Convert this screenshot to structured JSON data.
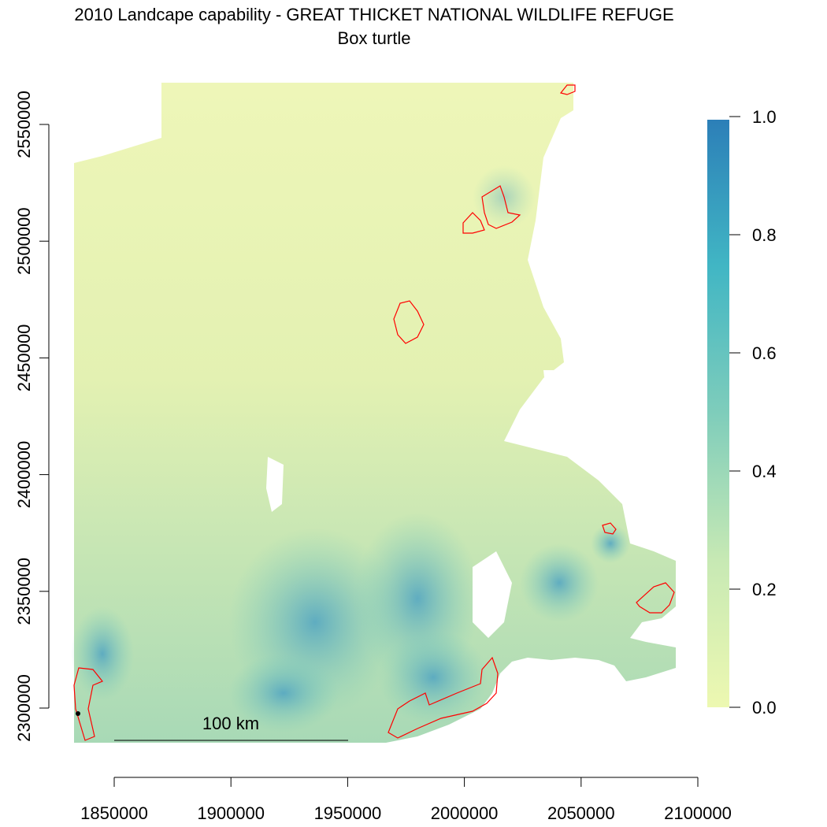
{
  "title": "2010 Landcape capability - GREAT THICKET NATIONAL WILDLIFE REFUGE",
  "subtitle": "Box turtle",
  "x_axis": {
    "ticks": [
      "1850000",
      "1900000",
      "1950000",
      "2000000",
      "2050000",
      "2100000"
    ],
    "values": [
      1850000,
      1900000,
      1950000,
      2000000,
      2050000,
      2100000
    ]
  },
  "y_axis": {
    "ticks": [
      "2300000",
      "2350000",
      "2400000",
      "2450000",
      "2500000",
      "2550000"
    ],
    "values": [
      2300000,
      2350000,
      2400000,
      2450000,
      2500000,
      2550000
    ]
  },
  "legend": {
    "ticks": [
      "0.0",
      "0.2",
      "0.4",
      "0.6",
      "0.8",
      "1.0"
    ],
    "values": [
      0,
      0.2,
      0.4,
      0.6,
      0.8,
      1.0
    ],
    "colors": [
      "#edf8b1",
      "#c7e9b4",
      "#7fcdbb",
      "#41b6c4",
      "#2c7fb8"
    ]
  },
  "scale_bar": {
    "label": "100 km"
  },
  "colors": {
    "refuge_outline": "#ff0000",
    "no_data": "#ffffff"
  }
}
